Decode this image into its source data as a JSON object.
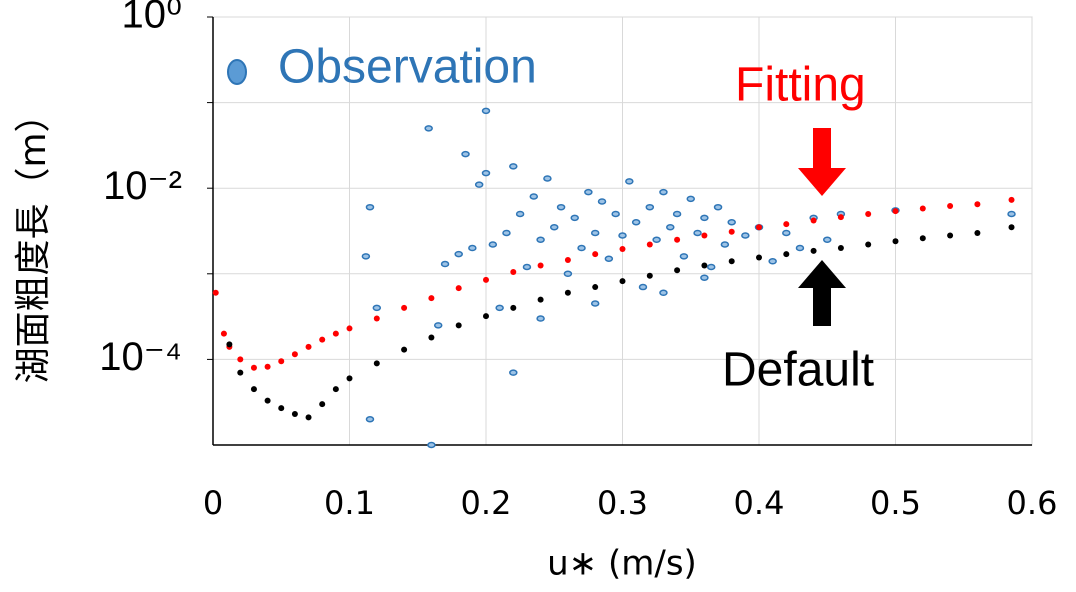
{
  "chart_data": {
    "type": "scatter",
    "y_label": "湖面粗度長（m）",
    "x_label": "u∗ (m/s)",
    "xlim": [
      0,
      0.6
    ],
    "xticks": [
      0,
      0.1,
      0.2,
      0.3,
      0.4,
      0.5,
      0.6
    ],
    "ylim": [
      1e-05,
      1
    ],
    "log_y": true,
    "yticks": [
      {
        "value": 1,
        "label": "10⁰"
      },
      {
        "value": 0.01,
        "label": "10⁻²"
      },
      {
        "value": 0.0001,
        "label": "10⁻⁴"
      }
    ],
    "minor_yticks": [
      0.1,
      0.001
    ],
    "grid": true,
    "series": [
      {
        "name": "Observation",
        "color": "#2e75b6",
        "x": [
          0.115,
          0.112,
          0.12,
          0.115,
          0.158,
          0.16,
          0.165,
          0.17,
          0.18,
          0.185,
          0.19,
          0.195,
          0.2,
          0.2,
          0.205,
          0.21,
          0.215,
          0.22,
          0.225,
          0.23,
          0.235,
          0.24,
          0.245,
          0.25,
          0.255,
          0.26,
          0.265,
          0.27,
          0.275,
          0.28,
          0.285,
          0.29,
          0.295,
          0.3,
          0.305,
          0.31,
          0.315,
          0.32,
          0.325,
          0.33,
          0.335,
          0.34,
          0.345,
          0.35,
          0.355,
          0.36,
          0.365,
          0.37,
          0.375,
          0.38,
          0.39,
          0.4,
          0.41,
          0.42,
          0.43,
          0.44,
          0.45,
          0.46,
          0.5,
          0.585,
          0.24,
          0.28,
          0.33,
          0.36,
          0.22
        ],
        "values": [
          0.006,
          0.0016,
          0.0004,
          2e-05,
          0.05,
          1e-05,
          0.00025,
          0.0013,
          0.0017,
          0.025,
          0.002,
          0.011,
          0.08,
          0.015,
          0.0022,
          0.0004,
          0.003,
          0.018,
          0.005,
          0.0012,
          0.008,
          0.0025,
          0.013,
          0.0035,
          0.006,
          0.001,
          0.0045,
          0.002,
          0.009,
          0.003,
          0.007,
          0.0015,
          0.005,
          0.0028,
          0.012,
          0.004,
          0.0007,
          0.006,
          0.0025,
          0.009,
          0.0035,
          0.005,
          0.0016,
          0.0075,
          0.003,
          0.0045,
          0.0012,
          0.006,
          0.0022,
          0.004,
          0.0028,
          0.0035,
          0.0014,
          0.003,
          0.002,
          0.0045,
          0.0025,
          0.005,
          0.0055,
          0.005,
          0.0003,
          0.00045,
          0.0006,
          0.0009,
          7e-05
        ]
      },
      {
        "name": "Fitting",
        "color": "#ff0000",
        "x": [
          0.002,
          0.008,
          0.012,
          0.02,
          0.03,
          0.04,
          0.05,
          0.06,
          0.07,
          0.08,
          0.09,
          0.1,
          0.12,
          0.14,
          0.16,
          0.18,
          0.2,
          0.22,
          0.24,
          0.26,
          0.28,
          0.3,
          0.32,
          0.34,
          0.36,
          0.38,
          0.4,
          0.42,
          0.44,
          0.46,
          0.48,
          0.5,
          0.52,
          0.54,
          0.56,
          0.585
        ],
        "values": [
          0.0006,
          0.0002,
          0.00014,
          0.0001,
          8e-05,
          8.2e-05,
          9.5e-05,
          0.000115,
          0.00014,
          0.00017,
          0.0002,
          0.00023,
          0.0003,
          0.0004,
          0.00052,
          0.00068,
          0.00085,
          0.00105,
          0.00125,
          0.00145,
          0.0017,
          0.00195,
          0.0022,
          0.0025,
          0.0028,
          0.0031,
          0.0035,
          0.0038,
          0.0042,
          0.0046,
          0.005,
          0.0054,
          0.0058,
          0.0062,
          0.0065,
          0.0073
        ]
      },
      {
        "name": "Default",
        "color": "#000000",
        "x": [
          0.012,
          0.02,
          0.03,
          0.04,
          0.05,
          0.06,
          0.07,
          0.08,
          0.09,
          0.1,
          0.12,
          0.14,
          0.16,
          0.18,
          0.2,
          0.22,
          0.24,
          0.26,
          0.28,
          0.3,
          0.32,
          0.34,
          0.36,
          0.38,
          0.4,
          0.42,
          0.44,
          0.46,
          0.48,
          0.5,
          0.52,
          0.54,
          0.56,
          0.585
        ],
        "values": [
          0.00015,
          7e-05,
          4.5e-05,
          3.3e-05,
          2.7e-05,
          2.3e-05,
          2.1e-05,
          3e-05,
          4.5e-05,
          6e-05,
          9e-05,
          0.00013,
          0.00018,
          0.00025,
          0.00032,
          0.0004,
          0.0005,
          0.0006,
          0.0007,
          0.00082,
          0.00095,
          0.0011,
          0.00125,
          0.0014,
          0.00155,
          0.0017,
          0.00185,
          0.002,
          0.0022,
          0.0024,
          0.0026,
          0.0028,
          0.003,
          0.0035
        ]
      }
    ]
  }
}
